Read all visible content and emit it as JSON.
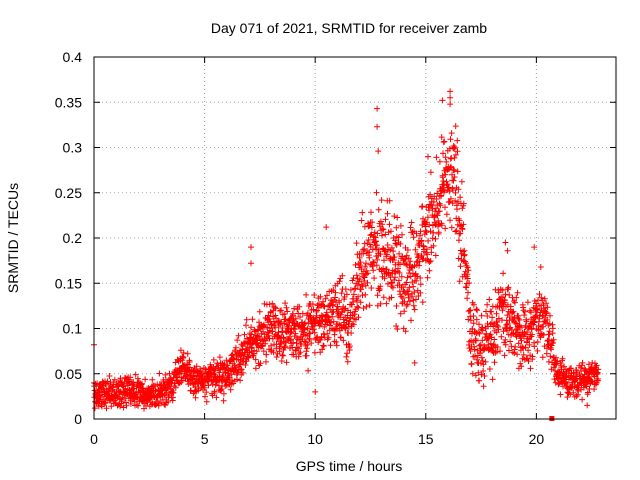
{
  "chart_data": {
    "type": "scatter",
    "title": "Day 071 of 2021, SRMTID for receiver zamb",
    "xlabel": "GPS time / hours",
    "ylabel": "SRMTID / TECUs",
    "xlim": [
      0,
      23.6
    ],
    "ylim": [
      0,
      0.4
    ],
    "xticks": [
      0,
      5,
      10,
      15,
      20
    ],
    "xtick_labels": [
      "0",
      "5",
      "10",
      "15",
      "20"
    ],
    "yticks": [
      0,
      0.05,
      0.1,
      0.15,
      0.2,
      0.25,
      0.3,
      0.35,
      0.4
    ],
    "ytick_labels": [
      "0",
      "0.05",
      "0.1",
      "0.15",
      "0.2",
      "0.25",
      "0.3",
      "0.35",
      "0.4"
    ],
    "grid": true,
    "marker": "+",
    "marker_color": "#ff0000",
    "series": [
      {
        "name": "SRMTID",
        "trend_x": [
          0,
          0.3,
          1,
          2,
          2.5,
          3,
          3.5,
          4,
          4.5,
          5,
          5.5,
          6,
          7,
          8,
          9,
          10,
          11,
          11.5,
          12,
          12.5,
          13,
          13.5,
          14,
          14.5,
          15,
          15.5,
          16,
          16.3,
          16.7,
          17,
          17.5,
          18,
          18.5,
          19,
          19.5,
          20,
          20.5,
          21,
          21.5,
          22,
          22.5,
          22.8
        ],
        "trend_y": [
          0.03,
          0.025,
          0.03,
          0.032,
          0.025,
          0.028,
          0.035,
          0.06,
          0.045,
          0.04,
          0.045,
          0.05,
          0.08,
          0.1,
          0.09,
          0.1,
          0.12,
          0.1,
          0.16,
          0.19,
          0.18,
          0.17,
          0.15,
          0.17,
          0.2,
          0.23,
          0.27,
          0.26,
          0.2,
          0.1,
          0.08,
          0.09,
          0.12,
          0.1,
          0.09,
          0.11,
          0.1,
          0.05,
          0.04,
          0.04,
          0.05,
          0.05
        ],
        "spread_x": [
          0,
          4,
          6,
          9,
          11.5,
          12.5,
          14,
          15.5,
          16.5,
          17,
          18.5,
          20.5,
          21,
          22.8
        ],
        "spread_y": [
          0.015,
          0.015,
          0.02,
          0.03,
          0.035,
          0.05,
          0.05,
          0.05,
          0.06,
          0.04,
          0.035,
          0.03,
          0.015,
          0.015
        ],
        "count": 2300,
        "outliers": [
          {
            "x": 7.1,
            "y": 0.19
          },
          {
            "x": 7.1,
            "y": 0.172
          },
          {
            "x": 12.8,
            "y": 0.343
          },
          {
            "x": 12.8,
            "y": 0.323
          },
          {
            "x": 12.85,
            "y": 0.296
          },
          {
            "x": 15.1,
            "y": 0.29
          },
          {
            "x": 15.75,
            "y": 0.352
          },
          {
            "x": 16.1,
            "y": 0.362
          },
          {
            "x": 16.1,
            "y": 0.355
          },
          {
            "x": 16.1,
            "y": 0.348
          },
          {
            "x": 10.5,
            "y": 0.212
          },
          {
            "x": 18.6,
            "y": 0.195
          },
          {
            "x": 18.7,
            "y": 0.186
          },
          {
            "x": 19.9,
            "y": 0.19
          },
          {
            "x": 20.2,
            "y": 0.168
          },
          {
            "x": 0.0,
            "y": 0.082
          },
          {
            "x": 10.0,
            "y": 0.03
          },
          {
            "x": 14.5,
            "y": 0.062
          },
          {
            "x": 22.3,
            "y": 0.015
          }
        ],
        "zero_marker_x": 20.7
      }
    ]
  }
}
